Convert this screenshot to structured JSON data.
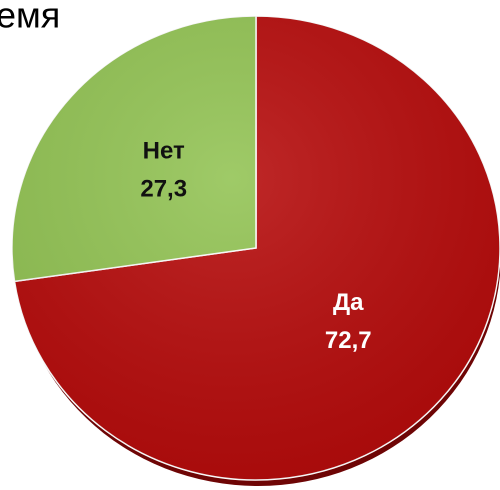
{
  "chart_data": {
    "type": "pie",
    "title": "емя",
    "categories": [
      "Да",
      "Нет"
    ],
    "values": [
      72.7,
      27.3
    ],
    "value_labels": [
      "72,7",
      "27,3"
    ],
    "colors": [
      "#b60b0b",
      "#92c353"
    ]
  }
}
